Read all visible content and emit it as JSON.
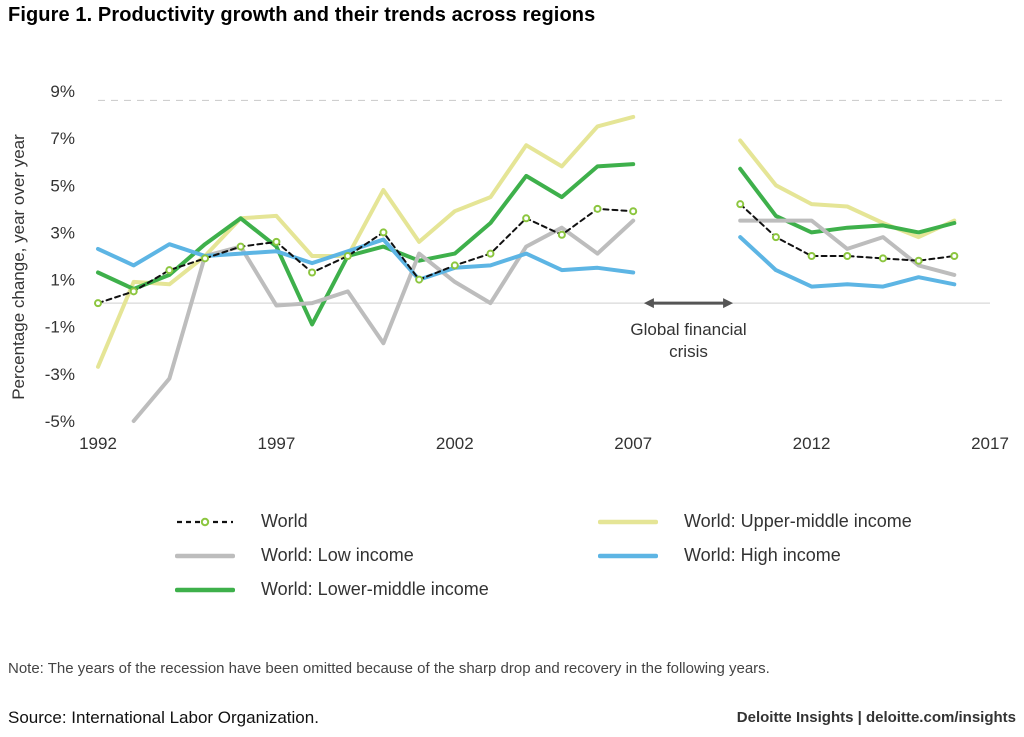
{
  "title": "Figure 1. Productivity growth and their trends across regions",
  "note": "Note: The years of the recession have been omitted because of the sharp drop and recovery in the following years.",
  "source": "Source: International Labor Organization.",
  "brand": "Deloitte Insights | deloitte.com/insights",
  "chart_data": {
    "type": "line",
    "title": "Figure 1. Productivity growth and their trends across regions",
    "ylabel": "Percentage change, year over year",
    "xlabel": "",
    "xlim": [
      1992,
      2017
    ],
    "ylim": [
      -5,
      9
    ],
    "x_ticks": [
      1992,
      1997,
      2002,
      2007,
      2012,
      2017
    ],
    "x_tick_labels": [
      "1992",
      "1997",
      "2002",
      "2007",
      "2012",
      "2017"
    ],
    "y_ticks": [
      -5,
      -3,
      -1,
      1,
      3,
      5,
      7,
      9
    ],
    "y_tick_labels": [
      "-5%",
      "-3%",
      "-1%",
      "1%",
      "3%",
      "5%",
      "7%",
      "9%"
    ],
    "grid": false,
    "legend_position": "bottom",
    "gap_years": [
      2008,
      2009
    ],
    "annotation": {
      "lines": [
        "Global financial",
        "crisis"
      ],
      "x_range": [
        2007.3,
        2009.8
      ],
      "y": 0
    },
    "reference_line": {
      "y": 8.6,
      "style": "dashed"
    },
    "zero_line": 0,
    "series": [
      {
        "name": "World: Upper-middle income",
        "color": "#e5e596",
        "style": "solid",
        "segments": [
          {
            "x": [
              1992,
              1993,
              1994,
              1995,
              1996,
              1997,
              1998,
              1999,
              2000,
              2001,
              2002,
              2003,
              2004,
              2005,
              2006,
              2007
            ],
            "y": [
              -2.7,
              0.9,
              0.8,
              2.0,
              3.6,
              3.7,
              2.0,
              2.0,
              4.8,
              2.6,
              3.9,
              4.5,
              6.7,
              5.8,
              7.5,
              7.9
            ]
          },
          {
            "x": [
              2010,
              2011,
              2012,
              2013,
              2014,
              2015,
              2016
            ],
            "y": [
              6.9,
              5.0,
              4.2,
              4.1,
              3.4,
              2.8,
              3.5
            ]
          }
        ]
      },
      {
        "name": "World: Lower-middle income",
        "color": "#3eb04b",
        "style": "solid",
        "segments": [
          {
            "x": [
              1992,
              1993,
              1994,
              1995,
              1996,
              1997,
              1998,
              1999,
              2000,
              2001,
              2002,
              2003,
              2004,
              2005,
              2006,
              2007
            ],
            "y": [
              1.3,
              0.6,
              1.2,
              2.5,
              3.6,
              2.4,
              -0.9,
              2.0,
              2.4,
              1.8,
              2.1,
              3.4,
              5.4,
              4.5,
              5.8,
              5.9
            ]
          },
          {
            "x": [
              2010,
              2011,
              2012,
              2013,
              2014,
              2015,
              2016
            ],
            "y": [
              5.7,
              3.7,
              3.0,
              3.2,
              3.3,
              3.0,
              3.4
            ]
          }
        ]
      },
      {
        "name": "World: Low income",
        "color": "#bdbdbd",
        "style": "solid",
        "segments": [
          {
            "x": [
              1993,
              1994,
              1995,
              1996,
              1997,
              1998,
              1999,
              2000,
              2001,
              2002,
              2003,
              2004,
              2005,
              2006,
              2007
            ],
            "y": [
              -5.0,
              -3.2,
              2.0,
              2.4,
              -0.1,
              0.0,
              0.5,
              -1.7,
              2.1,
              0.9,
              0.0,
              2.4,
              3.2,
              2.1,
              3.5
            ]
          },
          {
            "x": [
              2010,
              2011,
              2012,
              2013,
              2014,
              2015,
              2016
            ],
            "y": [
              3.5,
              3.5,
              3.5,
              2.3,
              2.8,
              1.6,
              1.2
            ]
          }
        ]
      },
      {
        "name": "World: High income",
        "color": "#5db5e4",
        "style": "solid",
        "segments": [
          {
            "x": [
              1992,
              1993,
              1994,
              1995,
              1996,
              1997,
              1998,
              1999,
              2000,
              2001,
              2002,
              2003,
              2004,
              2005,
              2006,
              2007
            ],
            "y": [
              2.3,
              1.6,
              2.5,
              2.0,
              2.1,
              2.2,
              1.7,
              2.2,
              2.7,
              1.0,
              1.5,
              1.6,
              2.1,
              1.4,
              1.5,
              1.3
            ]
          },
          {
            "x": [
              2010,
              2011,
              2012,
              2013,
              2014,
              2015,
              2016
            ],
            "y": [
              2.8,
              1.4,
              0.7,
              0.8,
              0.7,
              1.1,
              0.8
            ]
          }
        ]
      },
      {
        "name": "World",
        "color": "#111111",
        "marker_color": "#8cc63f",
        "style": "dashed",
        "segments": [
          {
            "x": [
              1992,
              1993,
              1994,
              1995,
              1996,
              1997,
              1998,
              1999,
              2000,
              2001,
              2002,
              2003,
              2004,
              2005,
              2006,
              2007
            ],
            "y": [
              0.0,
              0.5,
              1.4,
              1.9,
              2.4,
              2.6,
              1.3,
              2.0,
              3.0,
              1.0,
              1.6,
              2.1,
              3.6,
              2.9,
              4.0,
              3.9
            ]
          },
          {
            "x": [
              2010,
              2011,
              2012,
              2013,
              2014,
              2015,
              2016
            ],
            "y": [
              4.2,
              2.8,
              2.0,
              2.0,
              1.9,
              1.8,
              2.0
            ]
          }
        ]
      }
    ],
    "legend": [
      {
        "name": "World",
        "column": 0,
        "row": 0
      },
      {
        "name": "World: Low income",
        "column": 0,
        "row": 1
      },
      {
        "name": "World: Lower-middle income",
        "column": 0,
        "row": 2
      },
      {
        "name": "World: Upper-middle income",
        "column": 1,
        "row": 0
      },
      {
        "name": "World: High income",
        "column": 1,
        "row": 1
      }
    ]
  }
}
